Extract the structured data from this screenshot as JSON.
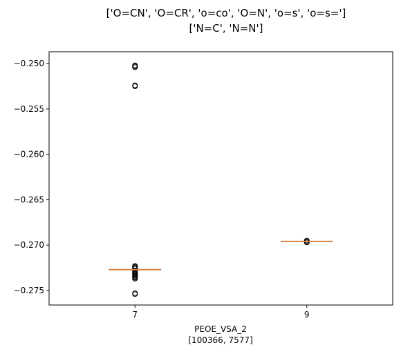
{
  "chart_data": {
    "type": "box",
    "title_lines": [
      "['O=CN', 'O=CR', 'o=co', 'O=N', 'o=s', 'o=s=']",
      "['N=C', 'N=N']"
    ],
    "xlabel_lines": [
      "PEOE_VSA_2",
      "[100366, 7577]"
    ],
    "ylabel": "",
    "categories": [
      "7",
      "9"
    ],
    "ylim": [
      -0.2766,
      -0.2487
    ],
    "yticks": [
      -0.275,
      -0.27,
      -0.265,
      -0.26,
      -0.255,
      -0.25
    ],
    "ytick_labels": [
      "−0.275",
      "−0.270",
      "−0.265",
      "−0.260",
      "−0.255",
      "−0.250"
    ],
    "series": [
      {
        "category": "7",
        "median": -0.2727,
        "q1": -0.2727,
        "q3": -0.2727,
        "whisker_low": -0.2727,
        "whisker_high": -0.2727,
        "outliers": [
          -0.2502,
          -0.2503,
          -0.2504,
          -0.2524,
          -0.2525,
          -0.2723,
          -0.2724,
          -0.2725,
          -0.2726,
          -0.2728,
          -0.2729,
          -0.273,
          -0.2731,
          -0.2732,
          -0.2733,
          -0.2734,
          -0.2735,
          -0.2736,
          -0.2737,
          -0.2753,
          -0.2754
        ]
      },
      {
        "category": "9",
        "median": -0.2696,
        "q1": -0.2696,
        "q3": -0.2696,
        "whisker_low": -0.2696,
        "whisker_high": -0.2696,
        "outliers": [
          -0.2695,
          -0.2696,
          -0.2697
        ]
      }
    ],
    "colors": {
      "median": "#d9813d",
      "box": "#000000",
      "outlier": "#000000"
    },
    "grid": false
  }
}
